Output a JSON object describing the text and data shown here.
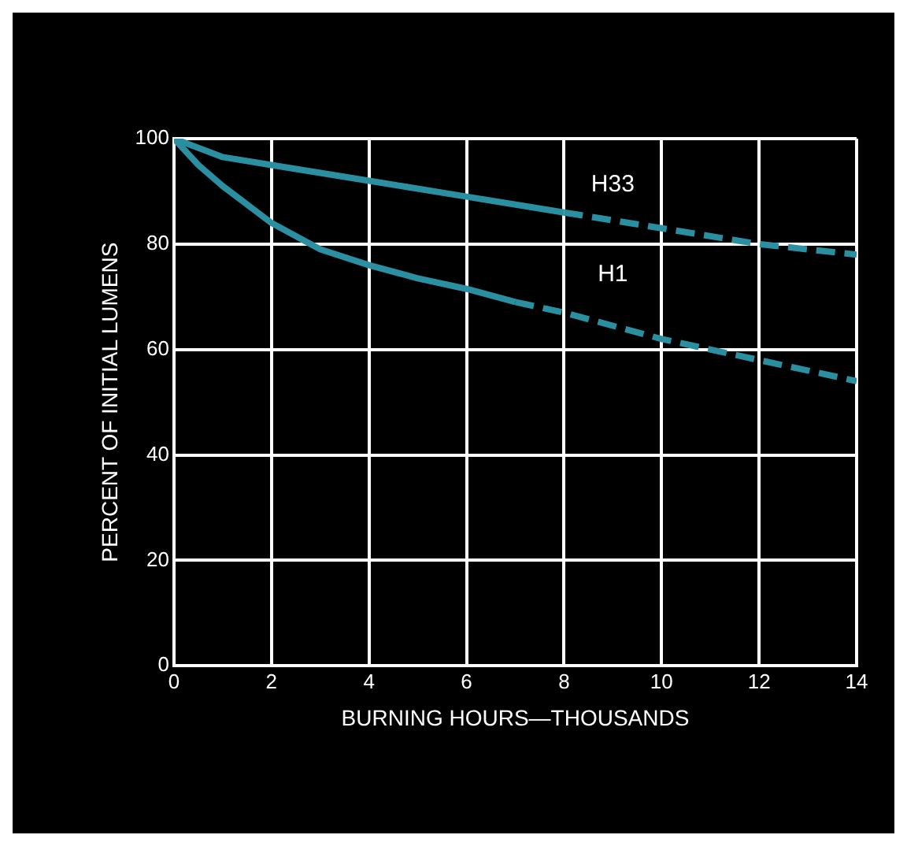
{
  "chart_data": {
    "type": "line",
    "xlabel": "BURNING HOURS—THOUSANDS",
    "ylabel": "PERCENT OF INITIAL LUMENS",
    "xlim": [
      0,
      14
    ],
    "xticks": [
      0,
      2,
      4,
      6,
      8,
      10,
      12,
      14
    ],
    "ylim": [
      0,
      100
    ],
    "yticks": [
      0,
      20,
      40,
      60,
      80,
      100
    ],
    "grid": true,
    "legend": false,
    "marker": "none",
    "series": [
      {
        "name": "H33",
        "color": "#2a8fa0",
        "line_style": "solid",
        "x": [
          0,
          1,
          2,
          4,
          6,
          8
        ],
        "values": [
          100,
          96.5,
          95,
          92,
          89,
          86
        ]
      },
      {
        "color": "#2a8fa0",
        "line_style": "dashed",
        "x": [
          8,
          10,
          12,
          14
        ],
        "values": [
          86,
          83,
          80,
          78
        ]
      },
      {
        "name": "H1",
        "color": "#2a8fa0",
        "line_style": "solid",
        "x": [
          0,
          0.5,
          1,
          2,
          3,
          4,
          5,
          6,
          7
        ],
        "values": [
          100,
          95,
          91,
          84,
          79,
          76,
          73.5,
          71.5,
          69
        ]
      },
      {
        "color": "#2a8fa0",
        "line_style": "dashed",
        "x": [
          7,
          8,
          10,
          12,
          14
        ],
        "values": [
          69,
          67,
          62,
          58,
          54
        ]
      }
    ]
  }
}
